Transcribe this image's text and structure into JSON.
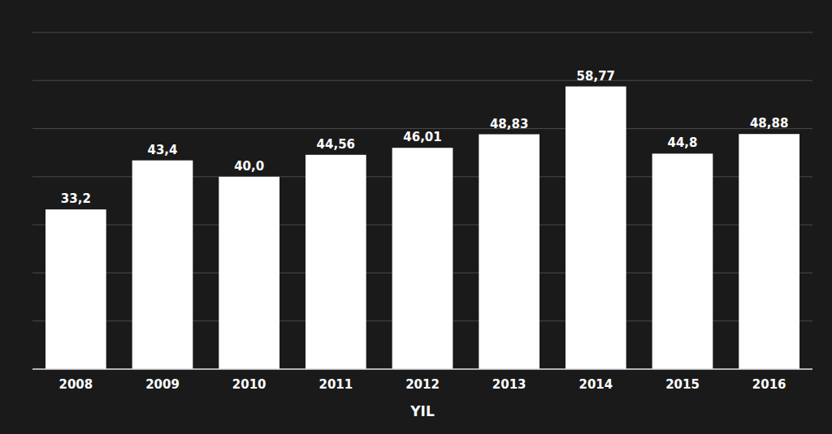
{
  "chart_data": {
    "type": "bar",
    "categories": [
      "2008",
      "2009",
      "2010",
      "2011",
      "2012",
      "2013",
      "2014",
      "2015",
      "2016"
    ],
    "values": [
      33.2,
      43.4,
      40.0,
      44.56,
      46.01,
      48.83,
      58.77,
      44.8,
      48.88
    ],
    "value_labels": [
      "33,2",
      "43,4",
      "40,0",
      "44,56",
      "46,01",
      "48,83",
      "58,77",
      "44,8",
      "48,88"
    ],
    "data_labels": true,
    "color": "#ffffff",
    "x_label": "YIL",
    "ylim": [
      0,
      70
    ],
    "yticks": [
      0,
      10,
      20,
      30,
      40,
      50,
      60,
      70
    ],
    "grid": true,
    "tick_labels": "x"
  }
}
